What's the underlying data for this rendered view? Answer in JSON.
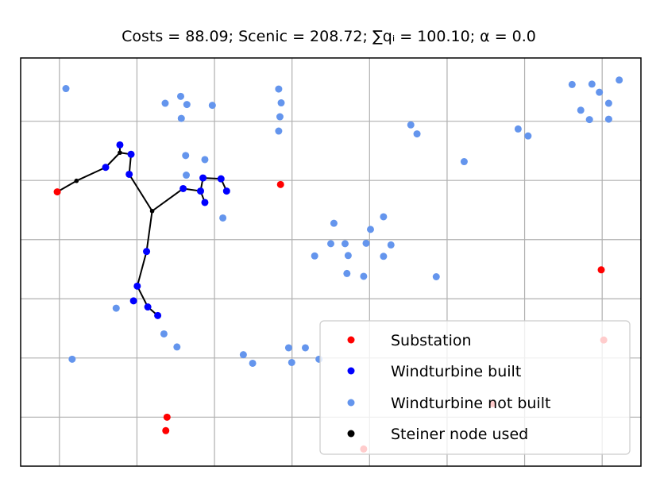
{
  "chart_data": {
    "type": "scatter",
    "title": "Costs = 88.09; Scenic = 208.72; ∑qᵢ = 100.10; α = 0.0",
    "xlabel": "",
    "ylabel": "",
    "xlim": [
      0,
      1
    ],
    "ylim": [
      0,
      1
    ],
    "grid": true,
    "legend": {
      "placement": "bottom-right"
    },
    "series": [
      {
        "name": "Substation",
        "color": "#ff0000",
        "points": [
          [
            0.059,
            0.672
          ],
          [
            0.419,
            0.69
          ],
          [
            0.936,
            0.481
          ],
          [
            0.94,
            0.309
          ],
          [
            0.236,
            0.12
          ],
          [
            0.234,
            0.087
          ],
          [
            0.761,
            0.153
          ],
          [
            0.553,
            0.042
          ]
        ]
      },
      {
        "name": "Windturbine built",
        "color": "#0000ff",
        "points": [
          [
            0.137,
            0.732
          ],
          [
            0.16,
            0.787
          ],
          [
            0.178,
            0.764
          ],
          [
            0.175,
            0.715
          ],
          [
            0.262,
            0.68
          ],
          [
            0.294,
            0.706
          ],
          [
            0.29,
            0.674
          ],
          [
            0.323,
            0.704
          ],
          [
            0.332,
            0.674
          ],
          [
            0.297,
            0.646
          ],
          [
            0.203,
            0.526
          ],
          [
            0.188,
            0.441
          ],
          [
            0.182,
            0.405
          ],
          [
            0.205,
            0.39
          ],
          [
            0.221,
            0.369
          ]
        ]
      },
      {
        "name": "Windturbine not built",
        "color": "#6495ed",
        "points": [
          [
            0.073,
            0.925
          ],
          [
            0.233,
            0.889
          ],
          [
            0.258,
            0.906
          ],
          [
            0.259,
            0.852
          ],
          [
            0.268,
            0.886
          ],
          [
            0.309,
            0.884
          ],
          [
            0.416,
            0.924
          ],
          [
            0.42,
            0.89
          ],
          [
            0.418,
            0.856
          ],
          [
            0.416,
            0.821
          ],
          [
            0.266,
            0.761
          ],
          [
            0.297,
            0.751
          ],
          [
            0.267,
            0.713
          ],
          [
            0.326,
            0.608
          ],
          [
            0.629,
            0.836
          ],
          [
            0.639,
            0.814
          ],
          [
            0.715,
            0.746
          ],
          [
            0.802,
            0.826
          ],
          [
            0.818,
            0.809
          ],
          [
            0.889,
            0.935
          ],
          [
            0.921,
            0.936
          ],
          [
            0.965,
            0.946
          ],
          [
            0.933,
            0.916
          ],
          [
            0.948,
            0.889
          ],
          [
            0.903,
            0.872
          ],
          [
            0.917,
            0.849
          ],
          [
            0.948,
            0.85
          ],
          [
            0.505,
            0.595
          ],
          [
            0.5,
            0.545
          ],
          [
            0.474,
            0.515
          ],
          [
            0.523,
            0.545
          ],
          [
            0.528,
            0.516
          ],
          [
            0.557,
            0.546
          ],
          [
            0.564,
            0.58
          ],
          [
            0.585,
            0.611
          ],
          [
            0.597,
            0.542
          ],
          [
            0.585,
            0.514
          ],
          [
            0.526,
            0.472
          ],
          [
            0.553,
            0.465
          ],
          [
            0.67,
            0.464
          ],
          [
            0.154,
            0.387
          ],
          [
            0.231,
            0.324
          ],
          [
            0.252,
            0.292
          ],
          [
            0.083,
            0.262
          ],
          [
            0.359,
            0.273
          ],
          [
            0.374,
            0.252
          ],
          [
            0.432,
            0.29
          ],
          [
            0.437,
            0.254
          ],
          [
            0.459,
            0.29
          ],
          [
            0.481,
            0.262
          ]
        ]
      },
      {
        "name": "Steiner node used",
        "color": "#000000",
        "points": [
          [
            0.09,
            0.699
          ],
          [
            0.16,
            0.768
          ],
          [
            0.212,
            0.625
          ]
        ]
      }
    ],
    "edges": [
      [
        [
          0.059,
          0.672
        ],
        [
          0.09,
          0.699
        ]
      ],
      [
        [
          0.09,
          0.699
        ],
        [
          0.137,
          0.732
        ]
      ],
      [
        [
          0.137,
          0.732
        ],
        [
          0.16,
          0.768
        ]
      ],
      [
        [
          0.16,
          0.768
        ],
        [
          0.16,
          0.787
        ]
      ],
      [
        [
          0.16,
          0.768
        ],
        [
          0.178,
          0.764
        ]
      ],
      [
        [
          0.178,
          0.764
        ],
        [
          0.175,
          0.715
        ]
      ],
      [
        [
          0.175,
          0.715
        ],
        [
          0.212,
          0.625
        ]
      ],
      [
        [
          0.212,
          0.625
        ],
        [
          0.262,
          0.68
        ]
      ],
      [
        [
          0.262,
          0.68
        ],
        [
          0.29,
          0.674
        ]
      ],
      [
        [
          0.29,
          0.674
        ],
        [
          0.294,
          0.706
        ]
      ],
      [
        [
          0.294,
          0.706
        ],
        [
          0.323,
          0.704
        ]
      ],
      [
        [
          0.323,
          0.704
        ],
        [
          0.332,
          0.674
        ]
      ],
      [
        [
          0.29,
          0.674
        ],
        [
          0.297,
          0.646
        ]
      ],
      [
        [
          0.212,
          0.625
        ],
        [
          0.203,
          0.526
        ]
      ],
      [
        [
          0.203,
          0.526
        ],
        [
          0.188,
          0.441
        ]
      ],
      [
        [
          0.188,
          0.441
        ],
        [
          0.205,
          0.39
        ]
      ],
      [
        [
          0.205,
          0.39
        ],
        [
          0.221,
          0.369
        ]
      ]
    ]
  }
}
